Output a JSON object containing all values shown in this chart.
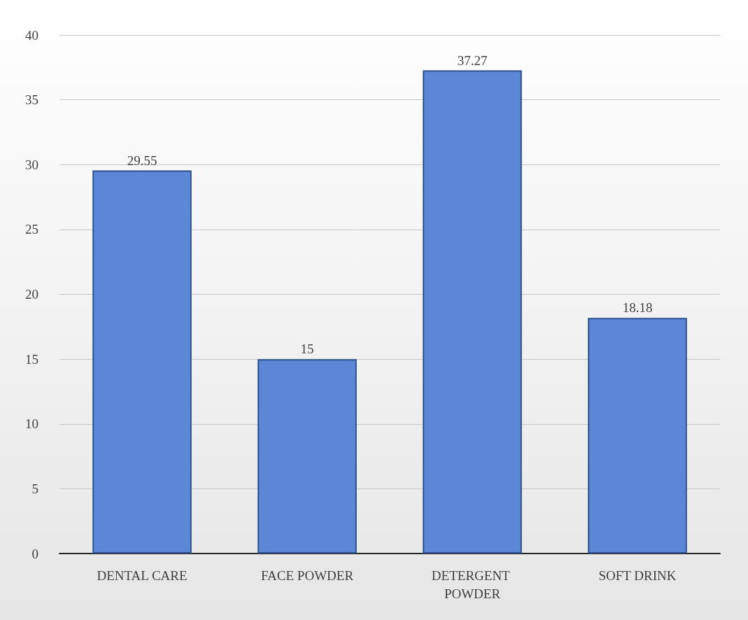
{
  "chart_data": {
    "type": "bar",
    "categories": [
      "DENTAL CARE",
      "FACE POWDER",
      "DETERGENT POWDER",
      "SOFT DRINK"
    ],
    "values": [
      29.55,
      15,
      37.27,
      18.18
    ],
    "color": "#5b87d6",
    "ylim": [
      0,
      40
    ],
    "yticks": [
      0,
      5,
      10,
      15,
      20,
      25,
      30,
      35,
      40
    ],
    "grid": "y",
    "data_labels": true
  }
}
